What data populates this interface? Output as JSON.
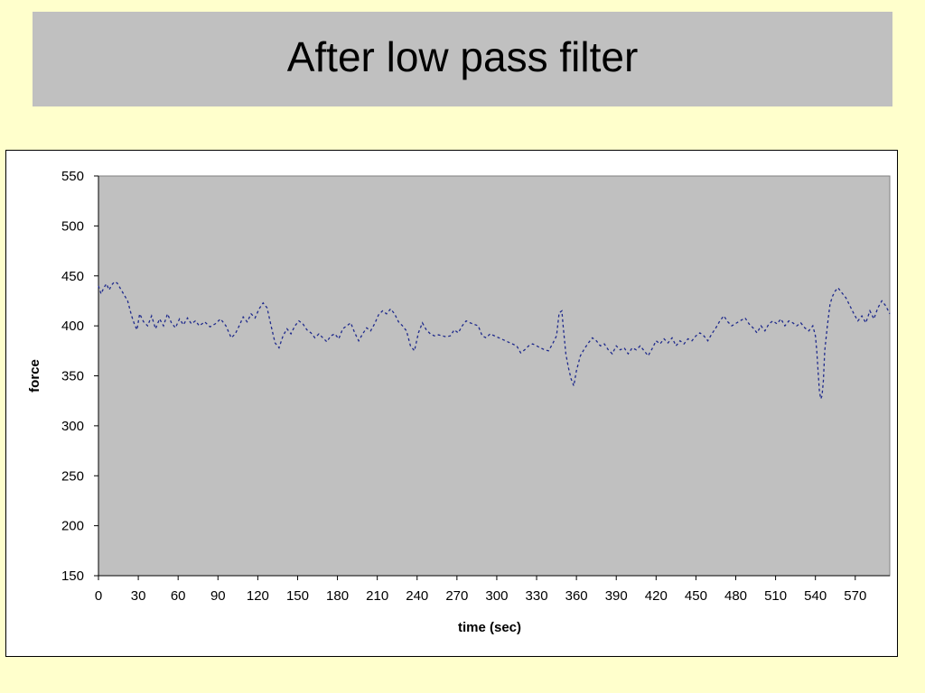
{
  "slide": {
    "title": "After low pass filter"
  },
  "colors": {
    "background": "#ffffcc",
    "title_box": "#c0c0c0",
    "plot_area": "#c0c0c0",
    "series_line": "#1f2a8c"
  },
  "chart_data": {
    "type": "line",
    "xlabel": "time (sec)",
    "ylabel": "force",
    "xlim": [
      0,
      596
    ],
    "ylim": [
      150,
      550
    ],
    "xticks": [
      0,
      30,
      60,
      90,
      120,
      150,
      180,
      210,
      240,
      270,
      300,
      330,
      360,
      390,
      420,
      450,
      480,
      510,
      540,
      570
    ],
    "yticks": [
      150,
      200,
      250,
      300,
      350,
      400,
      450,
      500,
      550
    ],
    "grid": false,
    "legend": "none",
    "line_style": "dashed",
    "series": [
      {
        "points": [
          [
            0,
            440
          ],
          [
            2,
            432
          ],
          [
            4,
            438
          ],
          [
            6,
            442
          ],
          [
            8,
            436
          ],
          [
            10,
            441
          ],
          [
            12,
            444
          ],
          [
            14,
            443
          ],
          [
            22,
            425
          ],
          [
            25,
            410
          ],
          [
            27,
            402
          ],
          [
            29,
            396
          ],
          [
            31,
            412
          ],
          [
            34,
            404
          ],
          [
            37,
            400
          ],
          [
            40,
            410
          ],
          [
            43,
            397
          ],
          [
            46,
            407
          ],
          [
            49,
            400
          ],
          [
            52,
            412
          ],
          [
            55,
            403
          ],
          [
            58,
            398
          ],
          [
            61,
            407
          ],
          [
            64,
            401
          ],
          [
            67,
            408
          ],
          [
            70,
            402
          ],
          [
            73,
            405
          ],
          [
            76,
            400
          ],
          [
            80,
            404
          ],
          [
            84,
            399
          ],
          [
            88,
            402
          ],
          [
            92,
            407
          ],
          [
            96,
            400
          ],
          [
            100,
            388
          ],
          [
            103,
            392
          ],
          [
            106,
            400
          ],
          [
            109,
            409
          ],
          [
            112,
            404
          ],
          [
            115,
            412
          ],
          [
            118,
            408
          ],
          [
            121,
            417
          ],
          [
            124,
            423
          ],
          [
            127,
            418
          ],
          [
            130,
            400
          ],
          [
            133,
            383
          ],
          [
            136,
            378
          ],
          [
            139,
            390
          ],
          [
            142,
            397
          ],
          [
            145,
            392
          ],
          [
            148,
            400
          ],
          [
            151,
            405
          ],
          [
            154,
            402
          ],
          [
            157,
            396
          ],
          [
            160,
            393
          ],
          [
            163,
            388
          ],
          [
            166,
            392
          ],
          [
            169,
            388
          ],
          [
            172,
            384
          ],
          [
            175,
            390
          ],
          [
            178,
            392
          ],
          [
            181,
            387
          ],
          [
            184,
            397
          ],
          [
            187,
            400
          ],
          [
            190,
            403
          ],
          [
            193,
            393
          ],
          [
            196,
            385
          ],
          [
            199,
            392
          ],
          [
            202,
            398
          ],
          [
            205,
            395
          ],
          [
            208,
            402
          ],
          [
            211,
            411
          ],
          [
            214,
            415
          ],
          [
            217,
            412
          ],
          [
            220,
            417
          ],
          [
            223,
            412
          ],
          [
            226,
            404
          ],
          [
            229,
            400
          ],
          [
            232,
            395
          ],
          [
            235,
            380
          ],
          [
            238,
            375
          ],
          [
            241,
            393
          ],
          [
            244,
            403
          ],
          [
            247,
            396
          ],
          [
            250,
            392
          ],
          [
            253,
            390
          ],
          [
            256,
            391
          ],
          [
            259,
            390
          ],
          [
            262,
            389
          ],
          [
            265,
            390
          ],
          [
            268,
            396
          ],
          [
            271,
            393
          ],
          [
            274,
            400
          ],
          [
            277,
            405
          ],
          [
            280,
            403
          ],
          [
            286,
            400
          ],
          [
            289,
            390
          ],
          [
            292,
            388
          ],
          [
            295,
            392
          ],
          [
            315,
            380
          ],
          [
            318,
            373
          ],
          [
            321,
            376
          ],
          [
            324,
            380
          ],
          [
            327,
            382
          ],
          [
            330,
            380
          ],
          [
            333,
            378
          ],
          [
            336,
            376
          ],
          [
            339,
            375
          ],
          [
            342,
            382
          ],
          [
            345,
            390
          ],
          [
            347,
            413
          ],
          [
            349,
            415
          ],
          [
            350,
            400
          ],
          [
            352,
            372
          ],
          [
            354,
            358
          ],
          [
            356,
            347
          ],
          [
            358,
            340
          ],
          [
            360,
            355
          ],
          [
            363,
            370
          ],
          [
            366,
            377
          ],
          [
            369,
            383
          ],
          [
            372,
            388
          ],
          [
            375,
            385
          ],
          [
            378,
            380
          ],
          [
            381,
            382
          ],
          [
            384,
            376
          ],
          [
            387,
            372
          ],
          [
            390,
            380
          ],
          [
            393,
            376
          ],
          [
            396,
            378
          ],
          [
            399,
            372
          ],
          [
            402,
            378
          ],
          [
            405,
            376
          ],
          [
            408,
            380
          ],
          [
            411,
            375
          ],
          [
            414,
            370
          ],
          [
            417,
            377
          ],
          [
            420,
            385
          ],
          [
            423,
            382
          ],
          [
            426,
            387
          ],
          [
            429,
            383
          ],
          [
            432,
            388
          ],
          [
            435,
            380
          ],
          [
            438,
            385
          ],
          [
            441,
            382
          ],
          [
            444,
            387
          ],
          [
            447,
            385
          ],
          [
            450,
            390
          ],
          [
            453,
            393
          ],
          [
            456,
            390
          ],
          [
            459,
            385
          ],
          [
            462,
            392
          ],
          [
            465,
            398
          ],
          [
            468,
            405
          ],
          [
            471,
            410
          ],
          [
            474,
            404
          ],
          [
            477,
            400
          ],
          [
            487,
            408
          ],
          [
            490,
            402
          ],
          [
            493,
            398
          ],
          [
            496,
            393
          ],
          [
            499,
            400
          ],
          [
            502,
            395
          ],
          [
            505,
            402
          ],
          [
            508,
            405
          ],
          [
            511,
            402
          ],
          [
            514,
            407
          ],
          [
            517,
            400
          ],
          [
            520,
            405
          ],
          [
            523,
            403
          ],
          [
            526,
            400
          ],
          [
            529,
            403
          ],
          [
            532,
            398
          ],
          [
            535,
            395
          ],
          [
            538,
            400
          ],
          [
            540,
            390
          ],
          [
            541,
            375
          ],
          [
            542,
            355
          ],
          [
            543,
            335
          ],
          [
            544,
            327
          ],
          [
            545,
            330
          ],
          [
            546,
            345
          ],
          [
            547,
            375
          ],
          [
            549,
            400
          ],
          [
            551,
            422
          ],
          [
            553,
            430
          ],
          [
            555,
            435
          ],
          [
            557,
            438
          ],
          [
            560,
            433
          ],
          [
            563,
            428
          ],
          [
            566,
            420
          ],
          [
            569,
            412
          ],
          [
            572,
            405
          ],
          [
            575,
            410
          ],
          [
            578,
            403
          ],
          [
            581,
            415
          ],
          [
            584,
            407
          ],
          [
            587,
            418
          ],
          [
            590,
            425
          ],
          [
            593,
            420
          ],
          [
            596,
            412
          ]
        ]
      }
    ]
  }
}
